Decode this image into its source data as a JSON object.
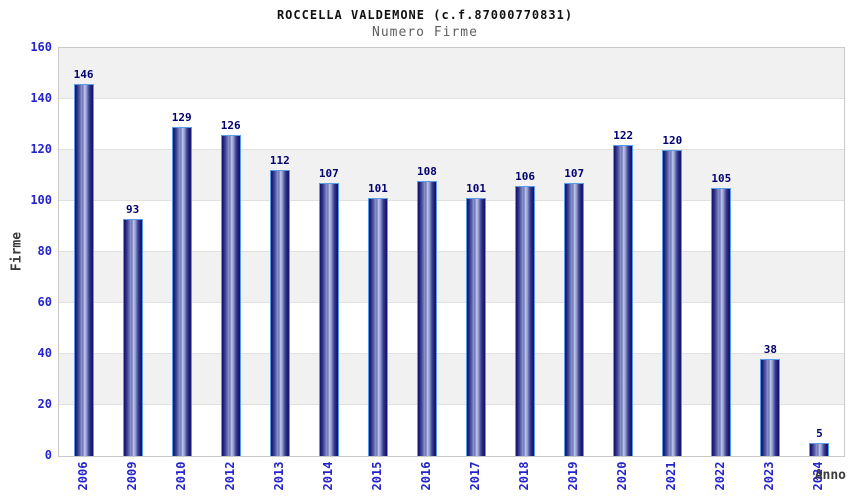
{
  "header": {
    "title": "ROCCELLA VALDEMONE (c.f.87000770831)",
    "subtitle": "Numero Firme"
  },
  "chart_data": {
    "type": "bar",
    "title": "ROCCELLA VALDEMONE (c.f.87000770831)",
    "subtitle": "Numero Firme",
    "categories": [
      "2006",
      "2009",
      "2010",
      "2012",
      "2013",
      "2014",
      "2015",
      "2016",
      "2017",
      "2018",
      "2019",
      "2020",
      "2021",
      "2022",
      "2023",
      "2024"
    ],
    "values": [
      146,
      93,
      129,
      126,
      112,
      107,
      101,
      108,
      101,
      106,
      107,
      122,
      120,
      105,
      38,
      5
    ],
    "xlabel": "Anno",
    "ylabel": "Firme",
    "ylim": [
      0,
      160
    ],
    "yticks": [
      0,
      20,
      40,
      60,
      80,
      100,
      120,
      140,
      160
    ],
    "grid": "alternating-horizontal-bands",
    "legend": "none"
  },
  "colors": {
    "tick_label": "#2424cc",
    "value_label": "#000070",
    "band_gray": "#f1f1f1",
    "band_white": "#ffffff",
    "gridline": "#e0e0e0",
    "plot_border": "#c9c9c9",
    "bar_dark": "#15156d",
    "bar_highlight": "#bec6ea",
    "bar_border": "#5b9ce6",
    "axis_title": "#3a3a3a",
    "subtitle_gray": "#606060"
  }
}
